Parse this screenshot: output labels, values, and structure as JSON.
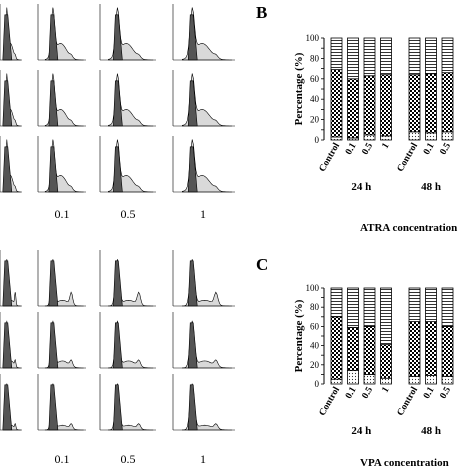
{
  "panels": {
    "B": {
      "letter": "B",
      "concentration_title": "ATRA concentration"
    },
    "C": {
      "letter": "C",
      "concentration_title": "VPA concentration"
    }
  },
  "histogram_dose_labels_top": [
    "0.1",
    "0.5",
    "1"
  ],
  "histogram_dose_labels_bottom": [
    "0.1",
    "0.5",
    "1"
  ],
  "colors": {
    "ink": "#000000",
    "dark_peak": "#555555",
    "light_fill": "#d9d9d9",
    "bar_bg": "#ffffff"
  },
  "chart_data": [
    {
      "panel": "B",
      "type": "bar",
      "stacked": true,
      "title": "",
      "ylabel": "Percentage (%)",
      "xlabel": "ATRA concentration",
      "ylim": [
        0,
        100
      ],
      "yticks": [
        0,
        10,
        20,
        30,
        40,
        50,
        60,
        70,
        80,
        90,
        100
      ],
      "groups": [
        {
          "label": "24 h",
          "categories": [
            "Control",
            "0.1",
            "0.5",
            "1"
          ]
        },
        {
          "label": "48 h",
          "categories": [
            "Control",
            "0.1",
            "0.5"
          ]
        }
      ],
      "segments_legend": [
        "bottom (dotted)",
        "middle (checkered)",
        "top (horizontal lines)"
      ],
      "series": [
        {
          "pattern": "dots",
          "values": [
            3,
            2,
            5,
            4,
            8,
            7,
            8
          ]
        },
        {
          "pattern": "checker",
          "values": [
            66,
            58,
            58,
            60,
            56,
            58,
            58
          ]
        },
        {
          "pattern": "hlines",
          "values": [
            31,
            40,
            37,
            36,
            36,
            35,
            34
          ]
        }
      ]
    },
    {
      "panel": "C",
      "type": "bar",
      "stacked": true,
      "title": "",
      "ylabel": "Percentage (%)",
      "xlabel": "VPA concentration",
      "ylim": [
        0,
        100
      ],
      "yticks": [
        0,
        10,
        20,
        30,
        40,
        50,
        60,
        70,
        80,
        90,
        100
      ],
      "groups": [
        {
          "label": "24 h",
          "categories": [
            "Control",
            "0.1",
            "0.5",
            "1"
          ]
        },
        {
          "label": "48 h",
          "categories": [
            "Control",
            "0.1",
            "0.5"
          ]
        }
      ],
      "segments_legend": [
        "bottom (dotted)",
        "middle (checkered)",
        "top (horizontal lines)"
      ],
      "series": [
        {
          "pattern": "dots",
          "values": [
            5,
            14,
            10,
            6,
            8,
            9,
            8
          ]
        },
        {
          "pattern": "checker",
          "values": [
            65,
            45,
            50,
            35,
            57,
            56,
            52
          ]
        },
        {
          "pattern": "hlines",
          "values": [
            30,
            41,
            40,
            59,
            35,
            35,
            40
          ]
        }
      ]
    }
  ]
}
